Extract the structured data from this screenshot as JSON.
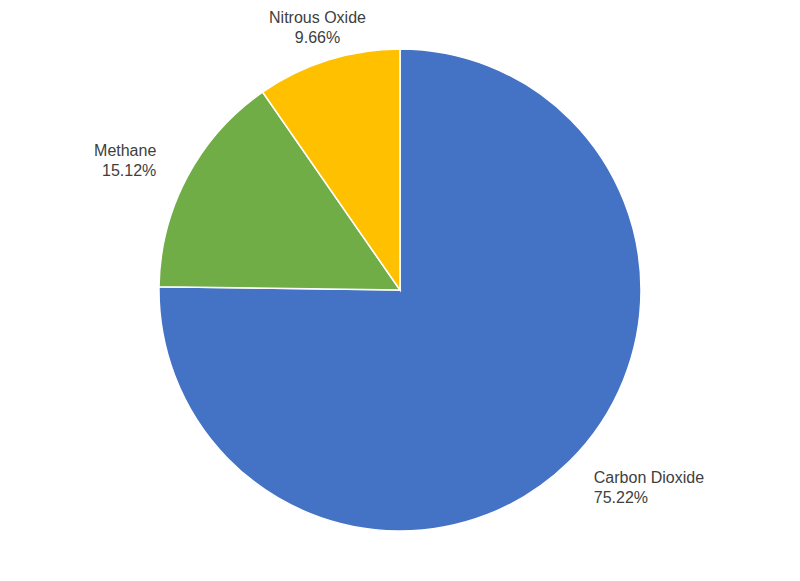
{
  "chart_data": {
    "type": "pie",
    "categories": [
      "Carbon Dioxide",
      "Methane",
      "Nitrous Oxide"
    ],
    "values": [
      75.22,
      15.12,
      9.66
    ],
    "value_labels": [
      "75.22%",
      "15.12%",
      "9.66%"
    ],
    "colors": [
      "#4472c4",
      "#70ad47",
      "#ffc000"
    ],
    "data_labels": true
  }
}
